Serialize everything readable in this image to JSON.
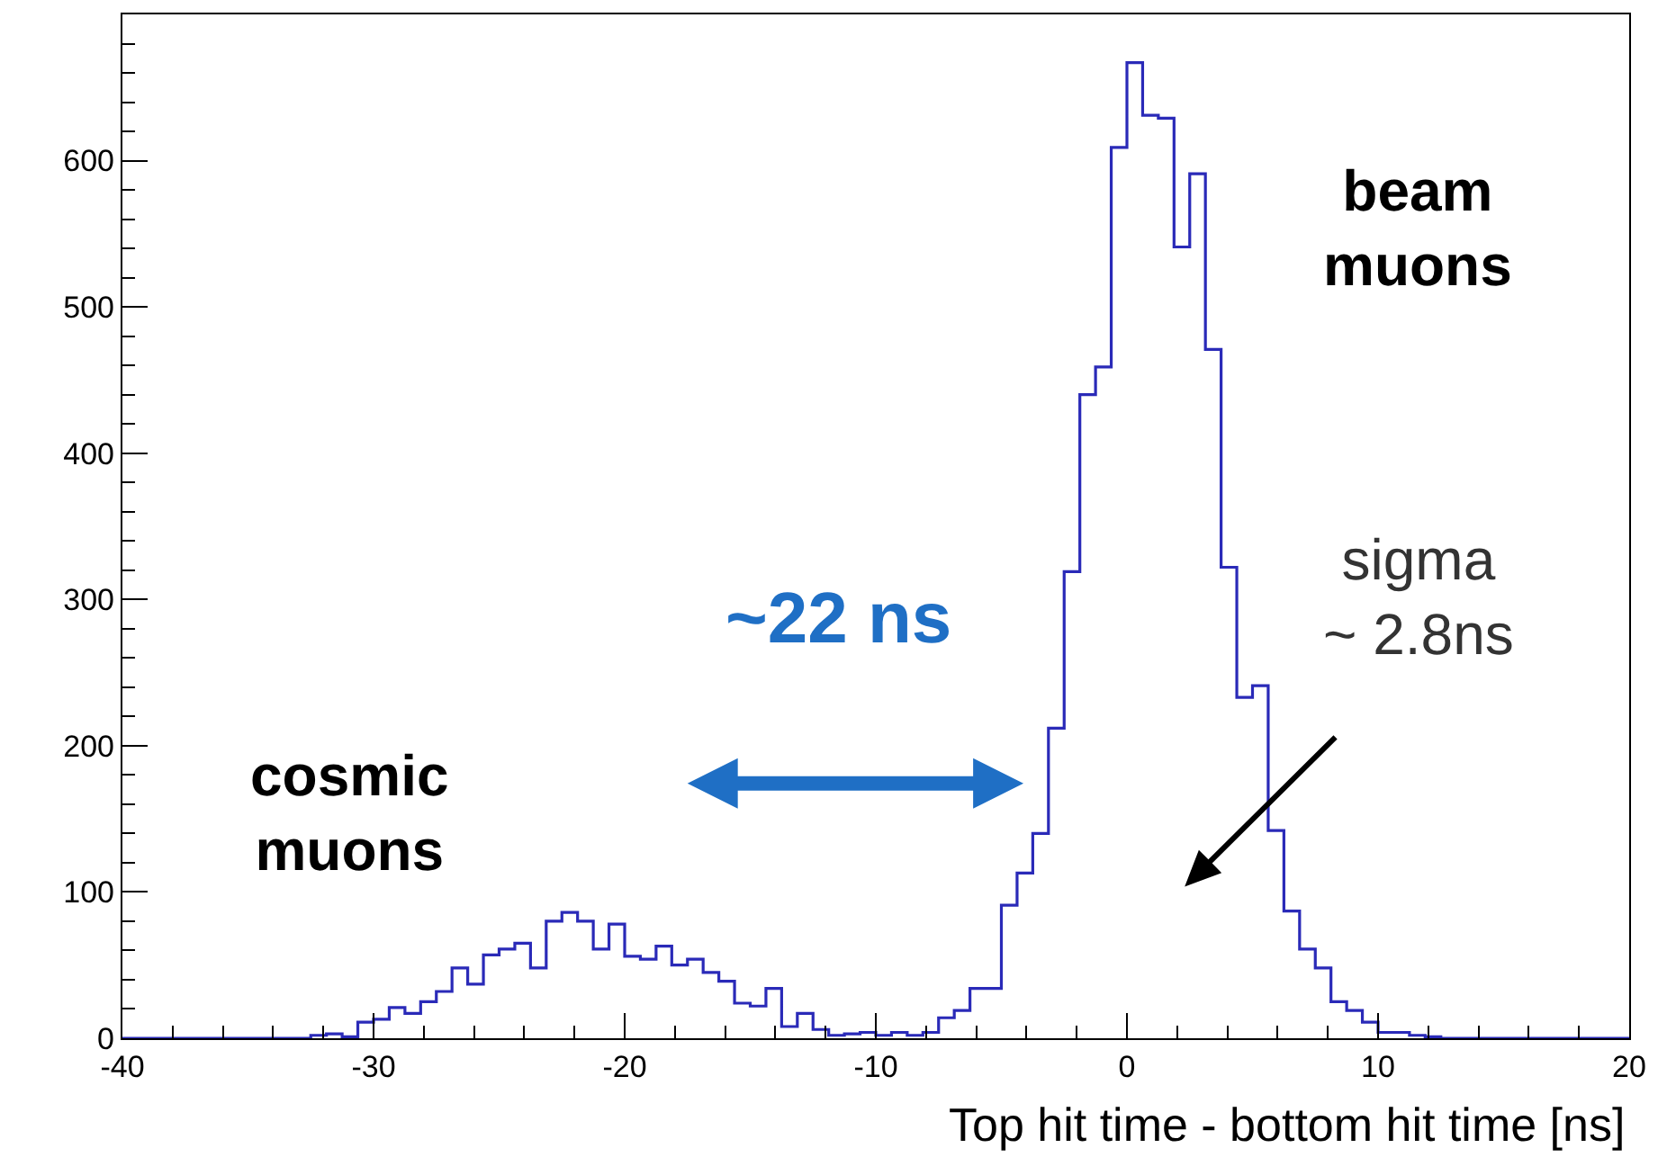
{
  "chart_data": {
    "type": "histogram",
    "xlabel": "Top hit time - bottom hit time [ns]",
    "bins": [
      -40,
      -39.375,
      -38.75,
      -38.125,
      -37.5,
      -36.875,
      -36.25,
      -35.625,
      -35,
      -34.375,
      -33.75,
      -33.125,
      -32.5,
      -31.875,
      -31.25,
      -30.625,
      -30,
      -29.375,
      -28.75,
      -28.125,
      -27.5,
      -26.875,
      -26.25,
      -25.625,
      -25,
      -24.375,
      -23.75,
      -23.125,
      -22.5,
      -21.875,
      -21.25,
      -20.625,
      -20,
      -19.375,
      -18.75,
      -18.125,
      -17.5,
      -16.875,
      -16.25,
      -15.625,
      -15,
      -14.375,
      -13.75,
      -13.125,
      -12.5,
      -11.875,
      -11.25,
      -10.625,
      -10,
      -9.375,
      -8.75,
      -8.125,
      -7.5,
      -6.875,
      -6.25,
      -5.625,
      -5,
      -4.375,
      -3.75,
      -3.125,
      -2.5,
      -1.875,
      -1.25,
      -0.625,
      0,
      0.625,
      1.25,
      1.875,
      2.5,
      3.125,
      3.75,
      4.375,
      5,
      5.625,
      6.25,
      6.875,
      7.5,
      8.125,
      8.75,
      9.375,
      10,
      10.625,
      11.25,
      11.875,
      12.5,
      13.125,
      13.75,
      14.375,
      15,
      15.625,
      16.25,
      16.875,
      17.5,
      18.125,
      18.75,
      19.375,
      20
    ],
    "values": [
      0,
      0,
      0,
      0,
      0,
      0,
      0,
      0,
      0,
      0,
      0,
      0,
      2,
      3,
      1,
      11,
      13,
      21,
      17,
      25,
      32,
      48,
      37,
      57,
      61,
      65,
      48,
      80,
      86,
      80,
      61,
      78,
      56,
      54,
      63,
      50,
      54,
      45,
      39,
      24,
      22,
      34,
      8,
      17,
      6,
      2,
      3,
      4,
      2,
      4,
      2,
      4,
      14,
      19,
      34,
      34,
      91,
      113,
      140,
      212,
      319,
      440,
      459,
      609,
      667,
      631,
      629,
      541,
      591,
      471,
      322,
      233,
      241,
      142,
      87,
      61,
      48,
      25,
      19,
      11,
      4,
      4,
      2,
      1,
      0,
      0,
      0,
      0,
      0,
      0,
      0,
      0,
      0,
      0,
      0,
      0
    ],
    "color": "#2a2ab8",
    "xlim": [
      -40,
      20
    ],
    "xticks": [
      -40,
      -30,
      -20,
      -10,
      0,
      10,
      20
    ],
    "ylim": [
      0,
      700
    ],
    "yticks": [
      0,
      100,
      200,
      300,
      400,
      500,
      600
    ],
    "annotations": [
      "beam\nmuons",
      "cosmic\nmuons",
      "~22 ns",
      "sigma\n~ 2.8ns"
    ]
  }
}
